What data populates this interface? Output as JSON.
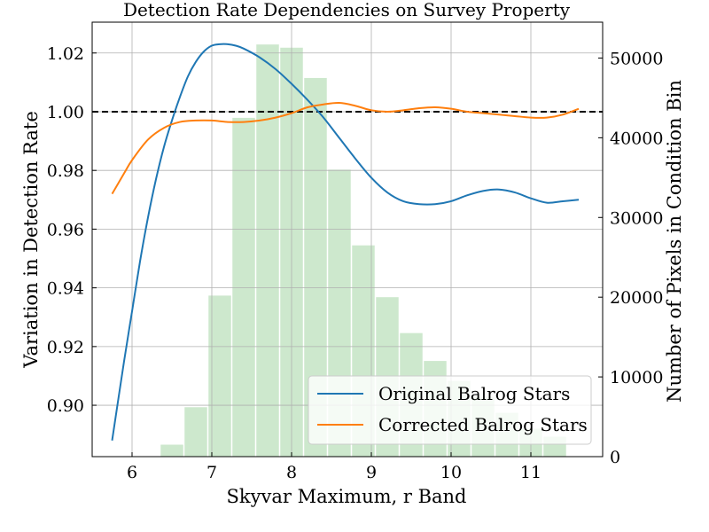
{
  "chart_data": {
    "type": "line",
    "title": "Detection Rate Dependencies on Survey Property",
    "xlabel": "Skyvar Maximum, r Band",
    "ylabel": "Variation in Detection Rate",
    "y2label": "Number of Pixels in Condition Bin",
    "xlim": [
      5.5,
      11.9
    ],
    "ylim": [
      0.8825,
      1.0305
    ],
    "y2lim": [
      0,
      54500
    ],
    "x_ticks": [
      "6",
      "7",
      "8",
      "9",
      "10",
      "11"
    ],
    "y_ticks": [
      "0.90",
      "0.92",
      "0.94",
      "0.96",
      "0.98",
      "1.00",
      "1.02"
    ],
    "y2_ticks": [
      "0",
      "10000",
      "20000",
      "30000",
      "40000",
      "50000"
    ],
    "grid": true,
    "reference_line": 1.0,
    "legend_position": "lower-right",
    "series": [
      {
        "name": "Original Balrog Stars",
        "color": "#1f77b4",
        "x": [
          5.75,
          5.9,
          6.0,
          6.1,
          6.2,
          6.3,
          6.4,
          6.5,
          6.6,
          6.7,
          6.8,
          6.9,
          7.0,
          7.1,
          7.2,
          7.3,
          7.4,
          7.6,
          7.8,
          8.0,
          8.2,
          8.4,
          8.6,
          8.8,
          9.0,
          9.2,
          9.4,
          9.6,
          9.8,
          10.0,
          10.2,
          10.4,
          10.6,
          10.8,
          11.0,
          11.2,
          11.4,
          11.6
        ],
        "y": [
          0.888,
          0.915,
          0.932,
          0.949,
          0.964,
          0.977,
          0.988,
          0.997,
          1.005,
          1.012,
          1.017,
          1.0205,
          1.0225,
          1.023,
          1.023,
          1.0225,
          1.0215,
          1.0185,
          1.0145,
          1.0095,
          1.004,
          0.998,
          0.991,
          0.984,
          0.9775,
          0.9725,
          0.9695,
          0.9685,
          0.9685,
          0.9695,
          0.9715,
          0.973,
          0.9735,
          0.9725,
          0.9705,
          0.969,
          0.9695,
          0.97
        ]
      },
      {
        "name": "Corrected Balrog Stars",
        "color": "#ff7f0e",
        "x": [
          5.75,
          5.9,
          6.0,
          6.2,
          6.4,
          6.6,
          6.8,
          7.0,
          7.2,
          7.4,
          7.6,
          7.8,
          8.0,
          8.2,
          8.4,
          8.6,
          8.8,
          9.0,
          9.2,
          9.4,
          9.6,
          9.8,
          10.0,
          10.2,
          10.4,
          10.6,
          10.8,
          11.0,
          11.2,
          11.4,
          11.6
        ],
        "y": [
          0.972,
          0.979,
          0.9835,
          0.9905,
          0.9945,
          0.9965,
          0.997,
          0.997,
          0.9965,
          0.9965,
          0.997,
          0.998,
          0.9995,
          1.0015,
          1.0025,
          1.003,
          1.002,
          1.0005,
          1.0,
          1.0005,
          1.0012,
          1.0015,
          1.001,
          1.0,
          0.9995,
          0.999,
          0.9985,
          0.998,
          0.998,
          0.999,
          1.001
        ]
      }
    ],
    "histogram": {
      "color": "#2ca02c",
      "axis": "right",
      "x_centers": [
        6.5,
        6.8,
        7.1,
        7.4,
        7.7,
        8.0,
        8.3,
        8.6,
        8.9,
        9.2,
        9.5,
        9.8,
        10.1,
        10.4,
        10.7,
        11.0,
        11.3
      ],
      "counts": [
        1500,
        6200,
        20200,
        42500,
        51700,
        51300,
        47500,
        36000,
        26500,
        20000,
        15500,
        12000,
        9500,
        7500,
        5500,
        3500,
        2500
      ]
    }
  }
}
